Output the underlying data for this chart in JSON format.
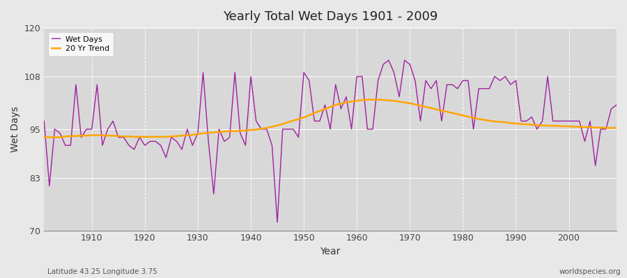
{
  "title": "Yearly Total Wet Days 1901 - 2009",
  "xlabel": "Year",
  "ylabel": "Wet Days",
  "lat_lon_label": "Latitude 43.25 Longitude 3.75",
  "watermark": "worldspecies.org",
  "ylim": [
    70,
    120
  ],
  "yticks": [
    70,
    83,
    95,
    108,
    120
  ],
  "xticks": [
    1910,
    1920,
    1930,
    1940,
    1950,
    1960,
    1970,
    1980,
    1990,
    2000
  ],
  "xlim": [
    1901,
    2009
  ],
  "line_color_wet": "#a020a0",
  "line_color_trend": "#FFA500",
  "bg_color": "#e8e8e8",
  "plot_bg_color": "#d8d8d8",
  "grid_color_v": "#ffffff",
  "grid_color_h": "#ffffff",
  "years": [
    1901,
    1902,
    1903,
    1904,
    1905,
    1906,
    1907,
    1908,
    1909,
    1910,
    1911,
    1912,
    1913,
    1914,
    1915,
    1916,
    1917,
    1918,
    1919,
    1920,
    1921,
    1922,
    1923,
    1924,
    1925,
    1926,
    1927,
    1928,
    1929,
    1930,
    1931,
    1932,
    1933,
    1934,
    1935,
    1936,
    1937,
    1938,
    1939,
    1940,
    1941,
    1942,
    1943,
    1944,
    1945,
    1946,
    1947,
    1948,
    1949,
    1950,
    1951,
    1952,
    1953,
    1954,
    1955,
    1956,
    1957,
    1958,
    1959,
    1960,
    1961,
    1962,
    1963,
    1964,
    1965,
    1966,
    1967,
    1968,
    1969,
    1970,
    1971,
    1972,
    1973,
    1974,
    1975,
    1976,
    1977,
    1978,
    1979,
    1980,
    1981,
    1982,
    1983,
    1984,
    1985,
    1986,
    1987,
    1988,
    1989,
    1990,
    1991,
    1992,
    1993,
    1994,
    1995,
    1996,
    1997,
    1998,
    1999,
    2000,
    2001,
    2002,
    2003,
    2004,
    2005,
    2006,
    2007,
    2008,
    2009
  ],
  "wet_days": [
    97,
    81,
    95,
    94,
    91,
    91,
    106,
    93,
    95,
    95,
    106,
    91,
    95,
    97,
    93,
    93,
    91,
    90,
    93,
    91,
    92,
    92,
    91,
    88,
    93,
    92,
    90,
    95,
    91,
    94,
    109,
    92,
    79,
    95,
    92,
    93,
    109,
    94,
    91,
    108,
    97,
    95,
    95,
    91,
    72,
    95,
    95,
    95,
    93,
    109,
    107,
    97,
    97,
    101,
    95,
    106,
    100,
    103,
    95,
    108,
    108,
    95,
    95,
    107,
    111,
    112,
    109,
    103,
    112,
    111,
    107,
    97,
    107,
    105,
    107,
    97,
    106,
    106,
    105,
    107,
    107,
    95,
    105,
    105,
    105,
    108,
    107,
    108,
    106,
    107,
    97,
    97,
    98,
    95,
    97,
    108,
    97,
    97,
    97,
    97,
    97,
    97,
    92,
    97,
    86,
    95,
    95,
    100,
    101
  ],
  "trend": [
    93.0,
    93.0,
    93.0,
    93.0,
    93.2,
    93.3,
    93.3,
    93.4,
    93.4,
    93.5,
    93.5,
    93.5,
    93.4,
    93.4,
    93.3,
    93.2,
    93.2,
    93.1,
    93.1,
    93.1,
    93.1,
    93.1,
    93.1,
    93.1,
    93.2,
    93.3,
    93.4,
    93.5,
    93.6,
    93.8,
    94.0,
    94.1,
    94.2,
    94.3,
    94.4,
    94.5,
    94.5,
    94.6,
    94.7,
    94.8,
    94.9,
    95.1,
    95.3,
    95.6,
    95.9,
    96.3,
    96.7,
    97.1,
    97.5,
    97.9,
    98.4,
    99.0,
    99.5,
    100.0,
    100.5,
    101.0,
    101.3,
    101.6,
    101.8,
    102.0,
    102.2,
    102.3,
    102.3,
    102.3,
    102.2,
    102.1,
    102.0,
    101.8,
    101.6,
    101.4,
    101.1,
    100.8,
    100.5,
    100.2,
    99.9,
    99.6,
    99.3,
    99.0,
    98.7,
    98.4,
    98.1,
    97.8,
    97.5,
    97.3,
    97.1,
    96.9,
    96.8,
    96.7,
    96.5,
    96.4,
    96.3,
    96.2,
    96.1,
    96.0,
    95.9,
    95.9,
    95.8,
    95.8,
    95.7,
    95.7,
    95.6,
    95.6,
    95.5,
    95.5,
    95.4,
    95.4,
    95.3,
    95.3,
    95.3
  ]
}
